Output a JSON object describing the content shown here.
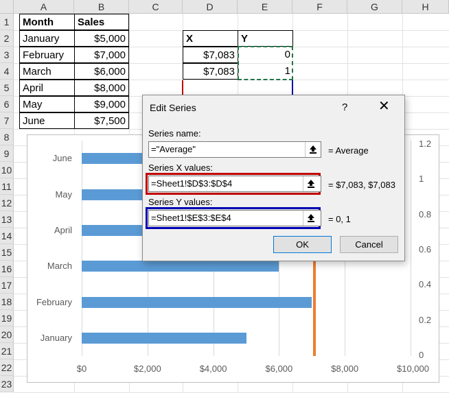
{
  "grid": {
    "columns": [
      "A",
      "B",
      "C",
      "D",
      "E",
      "F",
      "G",
      "H"
    ],
    "rows": [
      "1",
      "2",
      "3",
      "4",
      "5",
      "6",
      "7",
      "8",
      "9",
      "10",
      "11",
      "12",
      "13",
      "14",
      "15",
      "16",
      "17",
      "18",
      "19",
      "20",
      "21",
      "22",
      "23"
    ]
  },
  "sales_table": {
    "header_month": "Month",
    "header_sales": "Sales",
    "rows": [
      {
        "month": "January",
        "sales": "$5,000"
      },
      {
        "month": "February",
        "sales": "$7,000"
      },
      {
        "month": "March",
        "sales": "$6,000"
      },
      {
        "month": "April",
        "sales": "$8,000"
      },
      {
        "month": "May",
        "sales": "$9,000"
      },
      {
        "month": "June",
        "sales": "$7,500"
      }
    ]
  },
  "xy_table": {
    "header_x": "X",
    "header_y": "Y",
    "rows": [
      {
        "x": "$7,083",
        "y": "0"
      },
      {
        "x": "$7,083",
        "y": "1"
      }
    ]
  },
  "dialog": {
    "title": "Edit Series",
    "help": "?",
    "close": "✕",
    "series_name_label": "Series name:",
    "series_name_value": "=\"Average\"",
    "series_name_result": "= Average",
    "x_values_label": "Series X values:",
    "x_values_value": "=Sheet1!$D$3:$D$4",
    "x_values_result": "= $7,083, $7,083",
    "y_values_label": "Series Y values:",
    "y_values_value": "=Sheet1!$E$3:$E$4",
    "y_values_result": "= 0, 1",
    "ok_label": "OK",
    "cancel_label": "Cancel"
  },
  "colors": {
    "bar": "#5b9bd5",
    "average_line": "#ed7d31",
    "highlight_red": "#c00000",
    "highlight_blue": "#0000b4",
    "copy_marquee": "#217346"
  },
  "chart_data": {
    "type": "bar",
    "orientation": "horizontal",
    "categories": [
      "January",
      "February",
      "March",
      "April",
      "May",
      "June"
    ],
    "values": [
      5000,
      7000,
      6000,
      8000,
      9000,
      7500
    ],
    "x_ticks": [
      "$0",
      "$2,000",
      "$4,000",
      "$6,000",
      "$8,000",
      "$10,000"
    ],
    "xlim": [
      0,
      10000
    ],
    "secondary_y_ticks": [
      "0",
      "0.2",
      "0.4",
      "0.6",
      "0.8",
      "1",
      "1.2"
    ],
    "secondary_ylim": [
      0,
      1.2
    ],
    "average_line": {
      "x": 7083,
      "y": [
        0,
        1
      ]
    },
    "grid": true
  }
}
